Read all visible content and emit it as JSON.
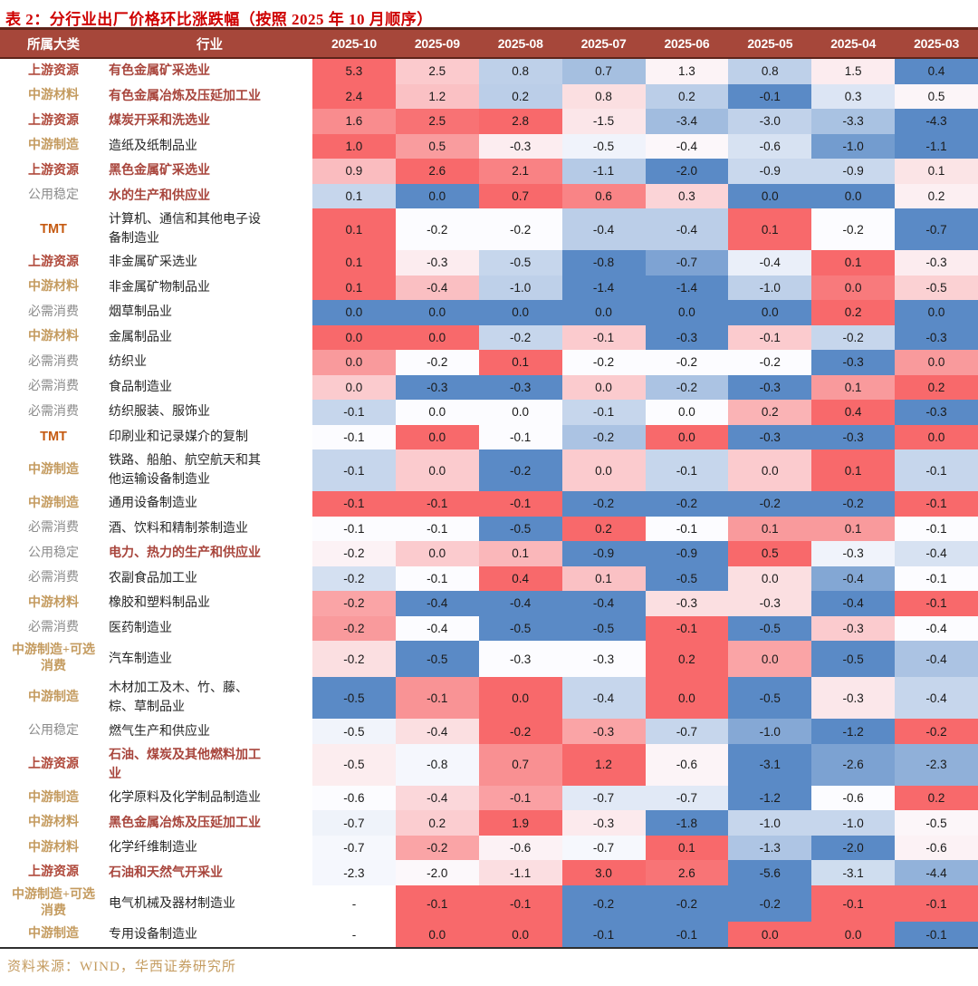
{
  "chart_data": {
    "type": "heatmap",
    "title": "表 2：分行业出厂价格环比涨跌幅（按照 2025 年 10 月顺序）",
    "source": "资料来源：WIND，华西证券研究所",
    "col_headers": {
      "category": "所属大类",
      "industry": "行业"
    },
    "columns": [
      "2025-10",
      "2025-09",
      "2025-08",
      "2025-07",
      "2025-06",
      "2025-05",
      "2025-04",
      "2025-03"
    ],
    "colorscale": {
      "scope": "per-row",
      "midpoint": "median",
      "max_color": "#F8696B",
      "mid_color": "#FCFCFF",
      "min_color": "#5A8AC6",
      "missing_color": "#FFFFFF"
    },
    "header_bg": "#A6473A",
    "header_border": "#5E241A",
    "title_color": "#CE0000",
    "rows": [
      {
        "category": "上游资源",
        "category_color": "red",
        "industry": "有色金属矿采选业",
        "industry_color": "red",
        "values": [
          "5.3",
          "2.5",
          "0.8",
          "0.7",
          "1.3",
          "0.8",
          "1.5",
          "0.4"
        ]
      },
      {
        "category": "中游材料",
        "category_color": "gold",
        "industry": "有色金属冶炼及压延加工业",
        "industry_color": "red",
        "values": [
          "2.4",
          "1.2",
          "0.2",
          "0.8",
          "0.2",
          "-0.1",
          "0.3",
          "0.5"
        ]
      },
      {
        "category": "上游资源",
        "category_color": "red",
        "industry": "煤炭开采和洗选业",
        "industry_color": "red",
        "values": [
          "1.6",
          "2.5",
          "2.8",
          "-1.5",
          "-3.4",
          "-3.0",
          "-3.3",
          "-4.3"
        ]
      },
      {
        "category": "中游制造",
        "category_color": "gold",
        "industry": "造纸及纸制品业",
        "industry_color": "black",
        "values": [
          "1.0",
          "0.5",
          "-0.3",
          "-0.5",
          "-0.4",
          "-0.6",
          "-1.0",
          "-1.1"
        ]
      },
      {
        "category": "上游资源",
        "category_color": "red",
        "industry": "黑色金属矿采选业",
        "industry_color": "red",
        "values": [
          "0.9",
          "2.6",
          "2.1",
          "-1.1",
          "-2.0",
          "-0.9",
          "-0.9",
          "0.1"
        ]
      },
      {
        "category": "公用稳定",
        "category_color": "gray",
        "industry": "水的生产和供应业",
        "industry_color": "red",
        "values": [
          "0.1",
          "0.0",
          "0.7",
          "0.6",
          "0.3",
          "0.0",
          "0.0",
          "0.2"
        ]
      },
      {
        "category": "TMT",
        "category_color": "orange",
        "industry": "计算机、通信和其他电子设备制造业",
        "industry_color": "black",
        "values": [
          "0.1",
          "-0.2",
          "-0.2",
          "-0.4",
          "-0.4",
          "0.1",
          "-0.2",
          "-0.7"
        ]
      },
      {
        "category": "上游资源",
        "category_color": "red",
        "industry": "非金属矿采选业",
        "industry_color": "black",
        "values": [
          "0.1",
          "-0.3",
          "-0.5",
          "-0.8",
          "-0.7",
          "-0.4",
          "0.1",
          "-0.3"
        ]
      },
      {
        "category": "中游材料",
        "category_color": "gold",
        "industry": "非金属矿物制品业",
        "industry_color": "black",
        "values": [
          "0.1",
          "-0.4",
          "-1.0",
          "-1.4",
          "-1.4",
          "-1.0",
          "0.0",
          "-0.5"
        ]
      },
      {
        "category": "必需消费",
        "category_color": "gray",
        "industry": "烟草制品业",
        "industry_color": "black",
        "values": [
          "0.0",
          "0.0",
          "0.0",
          "0.0",
          "0.0",
          "0.0",
          "0.2",
          "0.0"
        ]
      },
      {
        "category": "中游材料",
        "category_color": "gold",
        "industry": "金属制品业",
        "industry_color": "black",
        "values": [
          "0.0",
          "0.0",
          "-0.2",
          "-0.1",
          "-0.3",
          "-0.1",
          "-0.2",
          "-0.3"
        ]
      },
      {
        "category": "必需消费",
        "category_color": "gray",
        "industry": "纺织业",
        "industry_color": "black",
        "values": [
          "0.0",
          "-0.2",
          "0.1",
          "-0.2",
          "-0.2",
          "-0.2",
          "-0.3",
          "0.0"
        ]
      },
      {
        "category": "必需消费",
        "category_color": "gray",
        "industry": "食品制造业",
        "industry_color": "black",
        "values": [
          "0.0",
          "-0.3",
          "-0.3",
          "0.0",
          "-0.2",
          "-0.3",
          "0.1",
          "0.2"
        ]
      },
      {
        "category": "必需消费",
        "category_color": "gray",
        "industry": "纺织服装、服饰业",
        "industry_color": "black",
        "values": [
          "-0.1",
          "0.0",
          "0.0",
          "-0.1",
          "0.0",
          "0.2",
          "0.4",
          "-0.3"
        ]
      },
      {
        "category": "TMT",
        "category_color": "orange",
        "industry": "印刷业和记录媒介的复制",
        "industry_color": "black",
        "values": [
          "-0.1",
          "0.0",
          "-0.1",
          "-0.2",
          "0.0",
          "-0.3",
          "-0.3",
          "0.0"
        ]
      },
      {
        "category": "中游制造",
        "category_color": "gold",
        "industry": "铁路、船舶、航空航天和其他运输设备制造业",
        "industry_color": "black",
        "values": [
          "-0.1",
          "0.0",
          "-0.2",
          "0.0",
          "-0.1",
          "0.0",
          "0.1",
          "-0.1"
        ]
      },
      {
        "category": "中游制造",
        "category_color": "gold",
        "industry": "通用设备制造业",
        "industry_color": "black",
        "values": [
          "-0.1",
          "-0.1",
          "-0.1",
          "-0.2",
          "-0.2",
          "-0.2",
          "-0.2",
          "-0.1"
        ]
      },
      {
        "category": "必需消费",
        "category_color": "gray",
        "industry": "酒、饮料和精制茶制造业",
        "industry_color": "black",
        "values": [
          "-0.1",
          "-0.1",
          "-0.5",
          "0.2",
          "-0.1",
          "0.1",
          "0.1",
          "-0.1"
        ]
      },
      {
        "category": "公用稳定",
        "category_color": "gray",
        "industry": "电力、热力的生产和供应业",
        "industry_color": "red",
        "values": [
          "-0.2",
          "0.0",
          "0.1",
          "-0.9",
          "-0.9",
          "0.5",
          "-0.3",
          "-0.4"
        ]
      },
      {
        "category": "必需消费",
        "category_color": "gray",
        "industry": "农副食品加工业",
        "industry_color": "black",
        "values": [
          "-0.2",
          "-0.1",
          "0.4",
          "0.1",
          "-0.5",
          "0.0",
          "-0.4",
          "-0.1"
        ]
      },
      {
        "category": "中游材料",
        "category_color": "gold",
        "industry": "橡胶和塑料制品业",
        "industry_color": "black",
        "values": [
          "-0.2",
          "-0.4",
          "-0.4",
          "-0.4",
          "-0.3",
          "-0.3",
          "-0.4",
          "-0.1"
        ]
      },
      {
        "category": "必需消费",
        "category_color": "gray",
        "industry": "医药制造业",
        "industry_color": "black",
        "values": [
          "-0.2",
          "-0.4",
          "-0.5",
          "-0.5",
          "-0.1",
          "-0.5",
          "-0.3",
          "-0.4"
        ]
      },
      {
        "category": "中游制造+可选消费",
        "category_color": "gold",
        "industry": "汽车制造业",
        "industry_color": "black",
        "values": [
          "-0.2",
          "-0.5",
          "-0.3",
          "-0.3",
          "0.2",
          "0.0",
          "-0.5",
          "-0.4"
        ]
      },
      {
        "category": "中游制造",
        "category_color": "gold",
        "industry": "木材加工及木、竹、藤、棕、草制品业",
        "industry_color": "black",
        "values": [
          "-0.5",
          "-0.1",
          "0.0",
          "-0.4",
          "0.0",
          "-0.5",
          "-0.3",
          "-0.4"
        ]
      },
      {
        "category": "公用稳定",
        "category_color": "gray",
        "industry": "燃气生产和供应业",
        "industry_color": "black",
        "values": [
          "-0.5",
          "-0.4",
          "-0.2",
          "-0.3",
          "-0.7",
          "-1.0",
          "-1.2",
          "-0.2"
        ]
      },
      {
        "category": "上游资源",
        "category_color": "red",
        "industry": "石油、煤炭及其他燃料加工业",
        "industry_color": "red",
        "values": [
          "-0.5",
          "-0.8",
          "0.7",
          "1.2",
          "-0.6",
          "-3.1",
          "-2.6",
          "-2.3"
        ]
      },
      {
        "category": "中游制造",
        "category_color": "gold",
        "industry": "化学原料及化学制品制造业",
        "industry_color": "black",
        "values": [
          "-0.6",
          "-0.4",
          "-0.1",
          "-0.7",
          "-0.7",
          "-1.2",
          "-0.6",
          "0.2"
        ]
      },
      {
        "category": "中游材料",
        "category_color": "gold",
        "industry": "黑色金属冶炼及压延加工业",
        "industry_color": "red",
        "values": [
          "-0.7",
          "0.2",
          "1.9",
          "-0.3",
          "-1.8",
          "-1.0",
          "-1.0",
          "-0.5"
        ]
      },
      {
        "category": "中游材料",
        "category_color": "gold",
        "industry": "化学纤维制造业",
        "industry_color": "black",
        "values": [
          "-0.7",
          "-0.2",
          "-0.6",
          "-0.7",
          "0.1",
          "-1.3",
          "-2.0",
          "-0.6"
        ]
      },
      {
        "category": "上游资源",
        "category_color": "red",
        "industry": "石油和天然气开采业",
        "industry_color": "red",
        "values": [
          "-2.3",
          "-2.0",
          "-1.1",
          "3.0",
          "2.6",
          "-5.6",
          "-3.1",
          "-4.4"
        ]
      },
      {
        "category": "中游制造+可选消费",
        "category_color": "gold",
        "industry": "电气机械及器材制造业",
        "industry_color": "black",
        "values": [
          "-",
          "-0.1",
          "-0.1",
          "-0.2",
          "-0.2",
          "-0.2",
          "-0.1",
          "-0.1"
        ]
      },
      {
        "category": "中游制造",
        "category_color": "gold",
        "industry": "专用设备制造业",
        "industry_color": "black",
        "values": [
          "-",
          "0.0",
          "0.0",
          "-0.1",
          "-0.1",
          "0.0",
          "0.0",
          "-0.1"
        ]
      }
    ]
  }
}
